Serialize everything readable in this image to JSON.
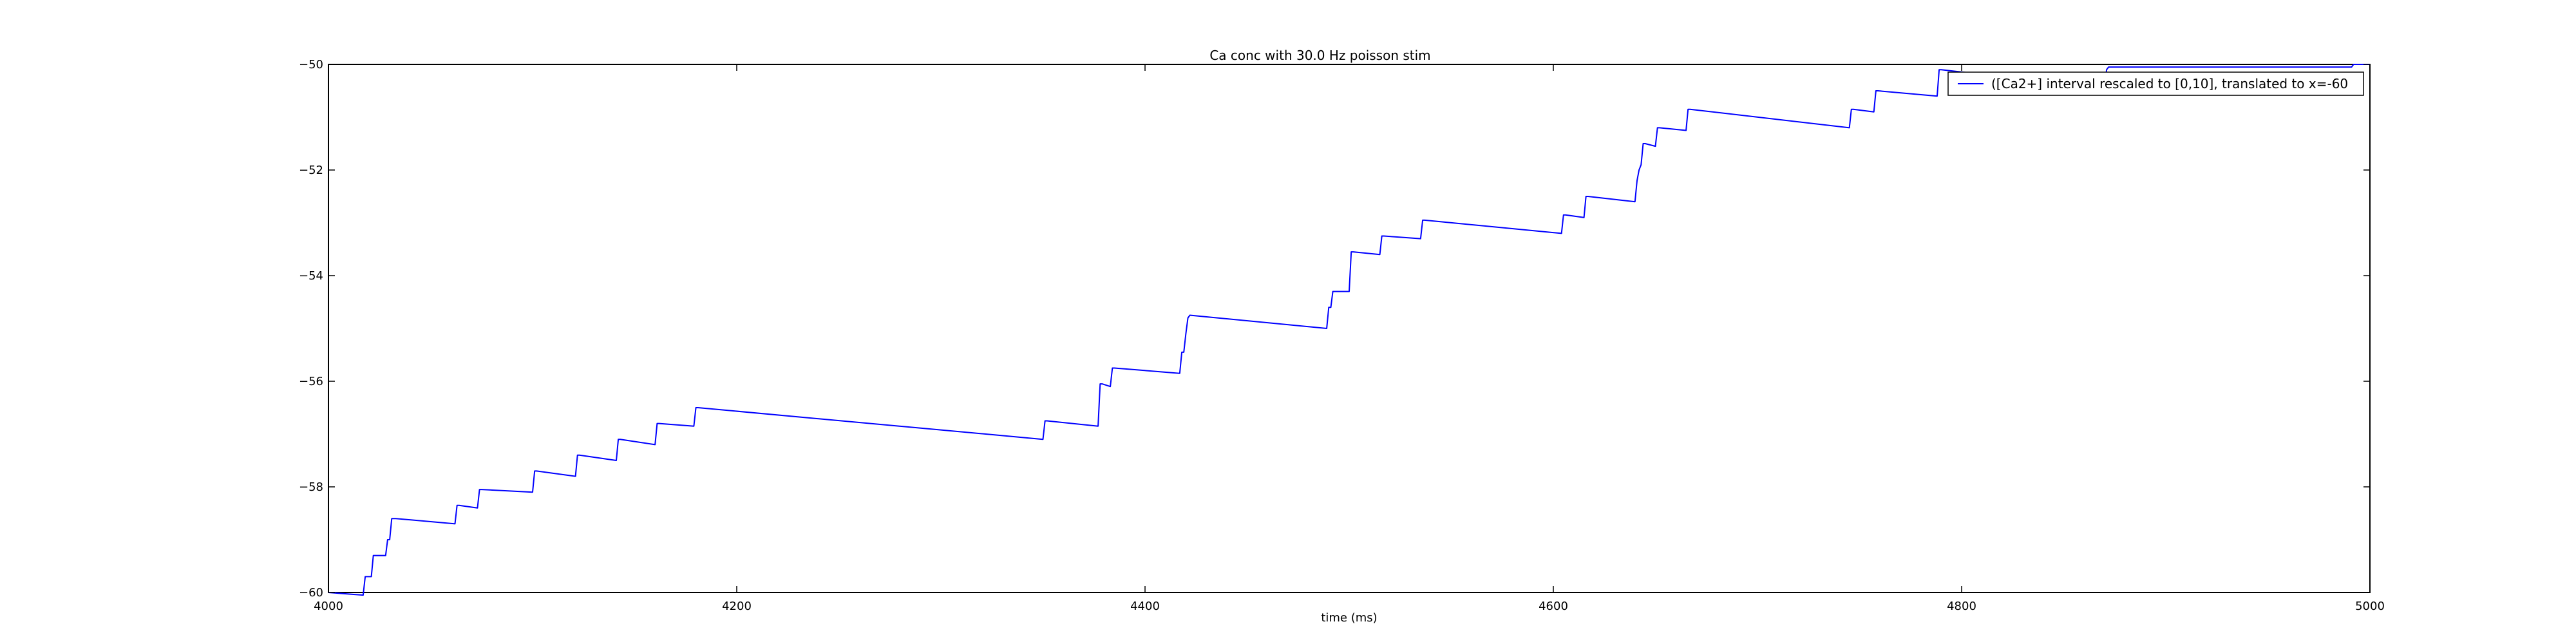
{
  "chart_data": {
    "type": "line",
    "title": "Ca conc with 30.0 Hz poisson stim",
    "xlabel": "time (ms)",
    "ylabel": "",
    "xlim": [
      4000,
      5000
    ],
    "ylim": [
      -60,
      -50
    ],
    "xticks": [
      4000,
      4200,
      4400,
      4600,
      4800,
      5000
    ],
    "yticks": [
      -60,
      -58,
      -56,
      -54,
      -52,
      -50
    ],
    "xtick_labels": [
      "4000",
      "4200",
      "4400",
      "4600",
      "4800",
      "5000"
    ],
    "ytick_labels": [
      "−60",
      "−58",
      "−56",
      "−54",
      "−52",
      "−50"
    ],
    "grid": false,
    "legend_position": "top-right",
    "series": [
      {
        "name": "([Ca2+] interval rescaled to [0,10], translated to x=-60",
        "color": "#0000ff",
        "x": [
          4000,
          4017,
          4018,
          4021,
          4022,
          4028,
          4029,
          4030,
          4031,
          4032,
          4033,
          4062,
          4063,
          4064,
          4073,
          4074,
          4075,
          4100,
          4101,
          4102,
          4121,
          4122,
          4123,
          4141,
          4142,
          4143,
          4160,
          4161,
          4162,
          4179,
          4180,
          4181,
          4350,
          4351,
          4352,
          4377,
          4378,
          4379,
          4383,
          4384,
          4385,
          4417,
          4418,
          4419,
          4420,
          4421,
          4422,
          4489,
          4490,
          4491,
          4492,
          4493,
          4494,
          4500,
          4501,
          4502,
          4515,
          4516,
          4517,
          4535,
          4536,
          4537,
          4604,
          4605,
          4606,
          4615,
          4616,
          4617,
          4640,
          4641,
          4642,
          4643,
          4644,
          4645,
          4650,
          4651,
          4652,
          4665,
          4666,
          4667,
          4745,
          4746,
          4747,
          4757,
          4758,
          4759,
          4788,
          4789,
          4790,
          4870,
          4871,
          4872,
          4873,
          4874,
          4875,
          4990,
          4991,
          4992,
          4998,
          4999,
          5000
        ],
        "y": [
          -60.0,
          -60.05,
          -59.7,
          -59.7,
          -59.3,
          -59.3,
          -59.0,
          -59.0,
          -58.6,
          -58.6,
          -58.6,
          -58.7,
          -58.35,
          -58.35,
          -58.4,
          -58.05,
          -58.05,
          -58.1,
          -57.7,
          -57.7,
          -57.8,
          -57.4,
          -57.4,
          -57.5,
          -57.1,
          -57.1,
          -57.2,
          -56.8,
          -56.8,
          -56.85,
          -56.5,
          -56.5,
          -57.1,
          -56.75,
          -56.75,
          -56.85,
          -56.05,
          -56.05,
          -56.1,
          -55.75,
          -55.75,
          -55.85,
          -55.45,
          -55.45,
          -55.1,
          -54.8,
          -54.75,
          -55.0,
          -54.6,
          -54.6,
          -54.3,
          -54.3,
          -54.3,
          -54.3,
          -53.55,
          -53.55,
          -53.6,
          -53.25,
          -53.25,
          -53.3,
          -52.95,
          -52.95,
          -53.2,
          -52.85,
          -52.85,
          -52.9,
          -52.5,
          -52.5,
          -52.6,
          -52.2,
          -52.0,
          -51.9,
          -51.5,
          -51.5,
          -51.55,
          -51.2,
          -51.2,
          -51.25,
          -50.85,
          -50.85,
          -51.2,
          -50.85,
          -50.85,
          -50.9,
          -50.5,
          -50.5,
          -50.6,
          -50.1,
          -50.1,
          -50.45,
          -50.1,
          -50.05,
          -50.05,
          -50.05,
          -50.05,
          -50.05,
          -50.05,
          -50.0,
          -50.0,
          -50.0,
          -50.0
        ]
      }
    ]
  }
}
